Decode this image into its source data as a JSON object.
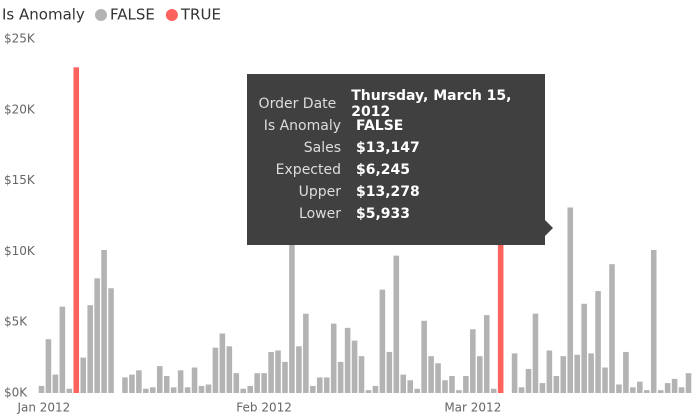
{
  "chart_data": {
    "type": "bar",
    "legend_title": "Is Anomaly",
    "categories": [
      "Jan 2012",
      null,
      null,
      null,
      null,
      null,
      null,
      null,
      null,
      null,
      null,
      null,
      null,
      null,
      null,
      null,
      null,
      null,
      null,
      null,
      null,
      null,
      null,
      null,
      null,
      null,
      null,
      null,
      null,
      null,
      null,
      null,
      "Feb 2012",
      null,
      null,
      null,
      null,
      null,
      null,
      null,
      null,
      null,
      null,
      null,
      null,
      null,
      null,
      null,
      null,
      null,
      null,
      null,
      null,
      null,
      null,
      null,
      null,
      null,
      null,
      null,
      null,
      null,
      "Mar 2012",
      null,
      null,
      null,
      null,
      null,
      null,
      null,
      null,
      null,
      null,
      null,
      null,
      null,
      null,
      null,
      null,
      null,
      null,
      null,
      null,
      null,
      null,
      null,
      null,
      null,
      null,
      null,
      null,
      null,
      null,
      null
    ],
    "series": [
      {
        "name": "FALSE",
        "color": "#b3b3b3",
        "values": [
          500,
          3800,
          1300,
          6100,
          300,
          null,
          2500,
          6200,
          8100,
          10100,
          7400,
          0,
          1100,
          1300,
          1600,
          300,
          400,
          1900,
          1200,
          400,
          1600,
          400,
          1800,
          500,
          600,
          3200,
          4200,
          3300,
          1400,
          300,
          500,
          1400,
          1400,
          2900,
          3000,
          2200,
          12000,
          3300,
          5600,
          500,
          1100,
          1100,
          4900,
          2200,
          4600,
          3700,
          2600,
          200,
          500,
          7300,
          2900,
          9700,
          1300,
          900,
          300,
          5100,
          2600,
          2100,
          900,
          1200,
          200,
          1200,
          4500,
          2600,
          5500,
          300,
          null,
          0,
          2800,
          400,
          1700,
          5600,
          700,
          3000,
          1200,
          2600,
          13100,
          2700,
          6300,
          2800,
          7200,
          1800,
          9100,
          600,
          2900,
          400,
          800,
          200,
          10100,
          200,
          700,
          1000,
          400,
          1400
        ]
      },
      {
        "name": "TRUE",
        "color": "#fd625e",
        "values": [
          null,
          null,
          null,
          null,
          null,
          23000,
          null,
          null,
          null,
          null,
          null,
          null,
          null,
          null,
          null,
          null,
          null,
          null,
          null,
          null,
          null,
          null,
          null,
          null,
          null,
          null,
          null,
          null,
          null,
          null,
          null,
          null,
          null,
          null,
          null,
          null,
          null,
          null,
          null,
          null,
          null,
          null,
          null,
          null,
          null,
          null,
          null,
          null,
          null,
          null,
          null,
          null,
          null,
          null,
          null,
          null,
          null,
          null,
          null,
          null,
          null,
          null,
          null,
          null,
          null,
          null,
          16200,
          null,
          null,
          null,
          null,
          null,
          null,
          null,
          null,
          null,
          null,
          null,
          null,
          null,
          null,
          null,
          null,
          null,
          null,
          null,
          null,
          null,
          null,
          null,
          null,
          null,
          null,
          null
        ]
      }
    ],
    "ylim": [
      0,
      25000
    ],
    "yticks": [
      {
        "value": 0,
        "label": "$0K"
      },
      {
        "value": 5000,
        "label": "$5K"
      },
      {
        "value": 10000,
        "label": "$10K"
      },
      {
        "value": 15000,
        "label": "$15K"
      },
      {
        "value": 20000,
        "label": "$20K"
      },
      {
        "value": 25000,
        "label": "$25K"
      }
    ],
    "grid": false,
    "tooltip": {
      "rows": [
        {
          "label": "Order Date",
          "value": "Thursday, March 15, 2012"
        },
        {
          "label": "Is Anomaly",
          "value": "FALSE"
        },
        {
          "label": "Sales",
          "value": "$13,147"
        },
        {
          "label": "Expected",
          "value": "$6,245"
        },
        {
          "label": "Upper",
          "value": "$13,278"
        },
        {
          "label": "Lower",
          "value": "$5,933"
        }
      ]
    }
  }
}
